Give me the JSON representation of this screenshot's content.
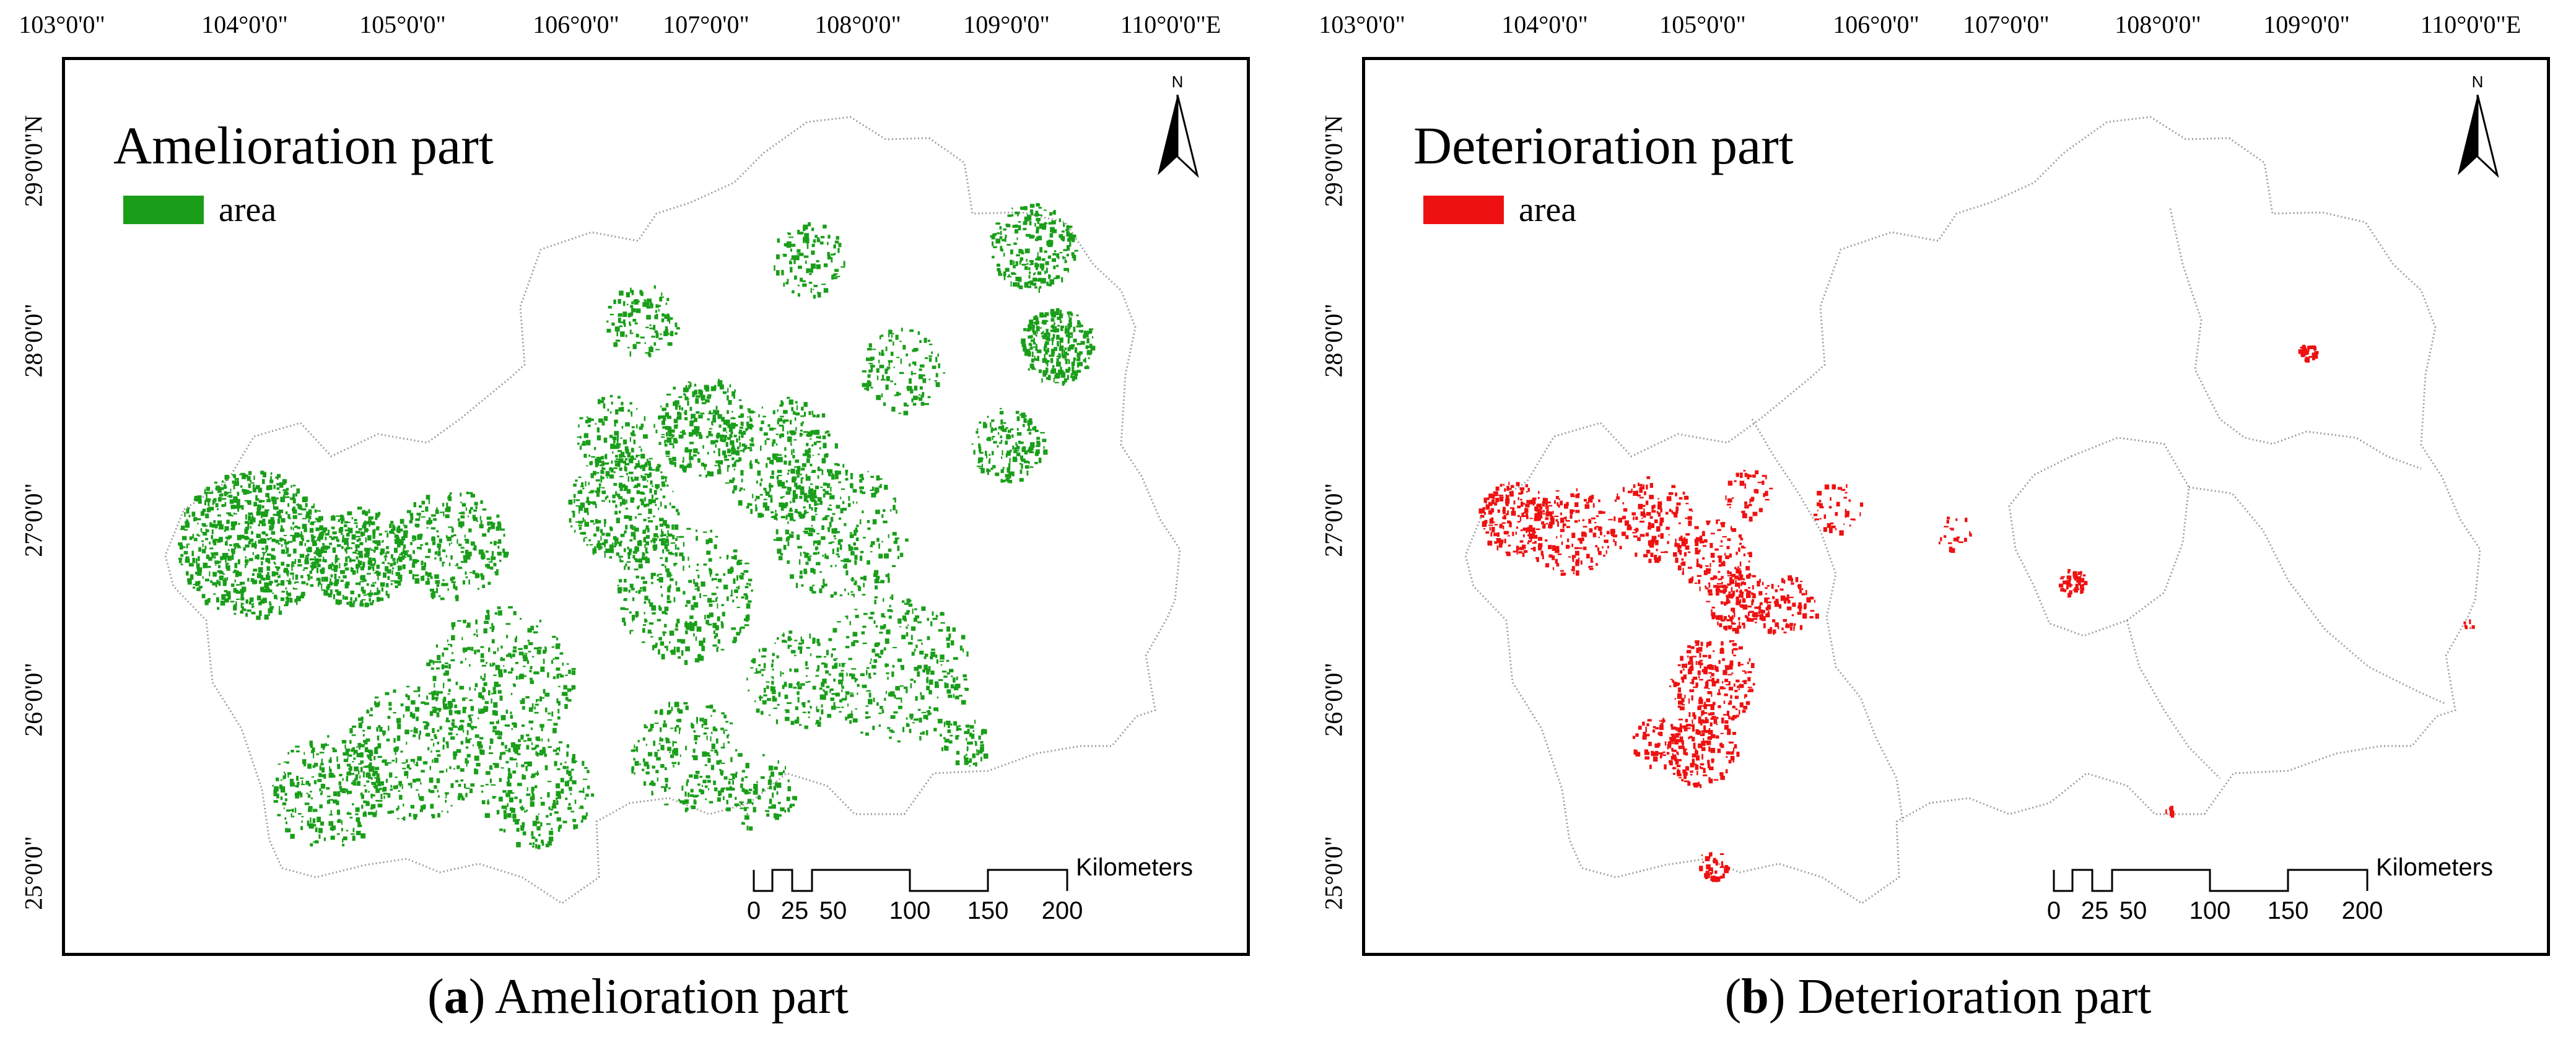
{
  "axes": {
    "longitude_labels": [
      "103°0'0\"",
      "104°0'0\"",
      "105°0'0\"",
      "106°0'0\"",
      "107°0'0\"",
      "108°0'0\"",
      "109°0'0\"",
      "110°0'0\"E"
    ],
    "latitude_labels": [
      "29°0'0\"N",
      "28°0'0\"",
      "27°0'0\"",
      "26°0'0\"",
      "25°0'0\""
    ]
  },
  "north_arrow": {
    "label": "N"
  },
  "scale_bar": {
    "unit": "Kilometers",
    "ticks": [
      "0",
      "25",
      "50",
      "100",
      "150",
      "200"
    ]
  },
  "colors": {
    "amelioration": "#1a9e1a",
    "deterioration": "#ee1111",
    "boundary": "#9a9a9a"
  },
  "panels": [
    {
      "id": "a",
      "title": "Amelioration part",
      "legend_label": "area",
      "caption_letter": "a",
      "caption_text": " Amelioration part"
    },
    {
      "id": "b",
      "title": "Deterioration part",
      "legend_label": "area",
      "caption_letter": "b",
      "caption_text": " Deterioration part"
    }
  ]
}
